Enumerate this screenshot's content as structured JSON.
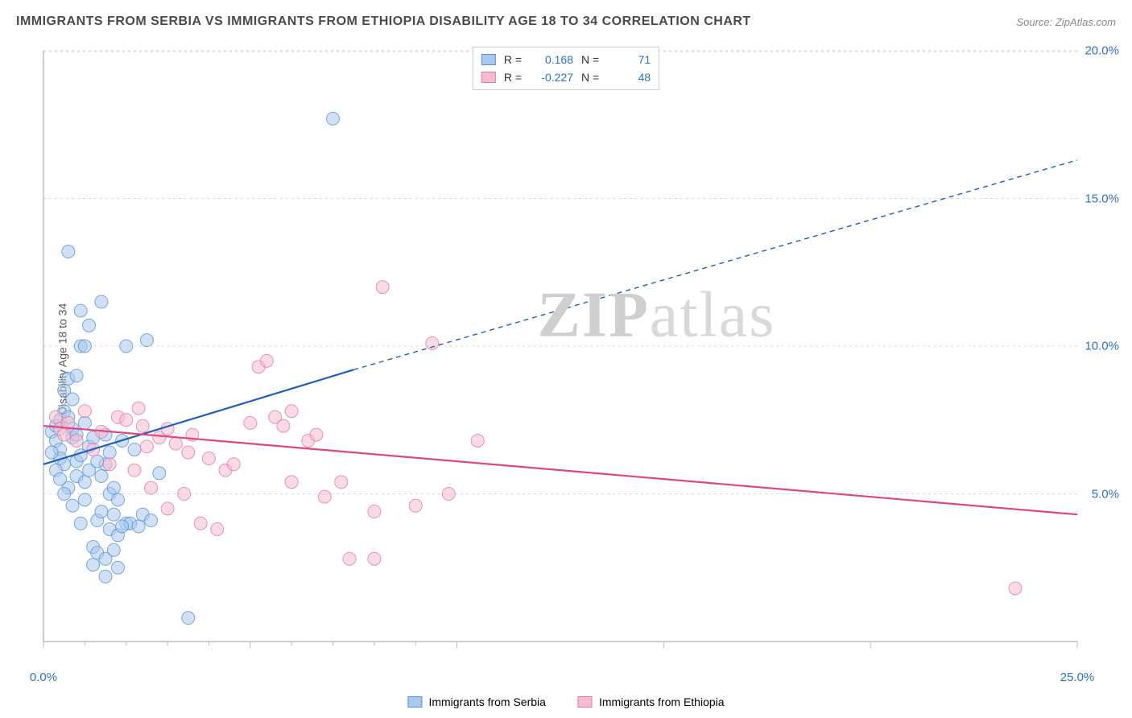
{
  "title": "IMMIGRANTS FROM SERBIA VS IMMIGRANTS FROM ETHIOPIA DISABILITY AGE 18 TO 34 CORRELATION CHART",
  "source": "Source: ZipAtlas.com",
  "ylabel": "Disability Age 18 to 34",
  "watermark_bold": "ZIP",
  "watermark_light": "atlas",
  "chart": {
    "type": "scatter",
    "background_color": "#ffffff",
    "grid_color": "#d8d8d8",
    "axis_color": "#bbbbbb",
    "xlim": [
      0,
      25
    ],
    "ylim": [
      0,
      20
    ],
    "xticks": [
      0,
      5,
      10,
      15,
      20,
      25
    ],
    "yticks": [
      5,
      10,
      15,
      20
    ],
    "xtick_minor": [
      1,
      2,
      3,
      4,
      6,
      7,
      8,
      9
    ],
    "xtick_labels": {
      "0": "0.0%",
      "25": "25.0%"
    },
    "ytick_labels": {
      "5": "5.0%",
      "10": "10.0%",
      "15": "15.0%",
      "20": "20.0%"
    },
    "label_color": "#2a6fd6",
    "label_fontsize": 15,
    "marker_radius": 8,
    "marker_opacity": 0.55,
    "series": [
      {
        "name": "Immigrants from Serbia",
        "label": "Immigrants from Serbia",
        "color_fill": "#a9c8ef",
        "color_stroke": "#5a94d8",
        "trend_color": "#1d5fc2",
        "trend_width": 2.2,
        "R": "0.168",
        "N": "71",
        "trend": {
          "x1": 0,
          "y1": 6.0,
          "x2_solid": 7.5,
          "y2_solid": 9.2,
          "x2": 25,
          "y2": 16.3
        },
        "points": [
          [
            0.2,
            7.1
          ],
          [
            0.3,
            6.8
          ],
          [
            0.3,
            7.3
          ],
          [
            0.4,
            6.5
          ],
          [
            0.4,
            7.5
          ],
          [
            0.4,
            6.2
          ],
          [
            0.5,
            7.8
          ],
          [
            0.5,
            8.5
          ],
          [
            0.5,
            6.0
          ],
          [
            0.6,
            5.2
          ],
          [
            0.6,
            8.9
          ],
          [
            0.6,
            13.2
          ],
          [
            0.7,
            6.9
          ],
          [
            0.7,
            7.2
          ],
          [
            0.7,
            4.6
          ],
          [
            0.8,
            5.6
          ],
          [
            0.8,
            6.1
          ],
          [
            0.8,
            7.0
          ],
          [
            0.9,
            10.0
          ],
          [
            0.9,
            11.2
          ],
          [
            0.9,
            4.0
          ],
          [
            1.0,
            4.8
          ],
          [
            1.0,
            10.0
          ],
          [
            1.0,
            5.4
          ],
          [
            1.1,
            6.6
          ],
          [
            1.1,
            10.7
          ],
          [
            1.2,
            3.2
          ],
          [
            1.2,
            6.9
          ],
          [
            1.2,
            2.6
          ],
          [
            1.3,
            4.1
          ],
          [
            1.3,
            3.0
          ],
          [
            1.4,
            4.4
          ],
          [
            1.4,
            11.5
          ],
          [
            1.5,
            6.0
          ],
          [
            1.5,
            2.2
          ],
          [
            1.5,
            2.8
          ],
          [
            1.6,
            5.0
          ],
          [
            1.6,
            3.8
          ],
          [
            1.7,
            4.3
          ],
          [
            1.7,
            3.1
          ],
          [
            1.8,
            3.6
          ],
          [
            1.8,
            2.5
          ],
          [
            1.9,
            6.8
          ],
          [
            2.0,
            4.0
          ],
          [
            2.0,
            10.0
          ],
          [
            2.1,
            4.0
          ],
          [
            2.3,
            3.9
          ],
          [
            2.4,
            4.3
          ],
          [
            2.5,
            10.2
          ],
          [
            2.6,
            4.1
          ],
          [
            3.5,
            0.8
          ],
          [
            0.3,
            5.8
          ],
          [
            0.4,
            5.5
          ],
          [
            0.5,
            5.0
          ],
          [
            0.6,
            7.6
          ],
          [
            0.7,
            8.2
          ],
          [
            0.8,
            9.0
          ],
          [
            0.9,
            6.3
          ],
          [
            1.0,
            7.4
          ],
          [
            1.1,
            5.8
          ],
          [
            1.3,
            6.1
          ],
          [
            1.4,
            5.6
          ],
          [
            1.5,
            7.0
          ],
          [
            1.6,
            6.4
          ],
          [
            1.7,
            5.2
          ],
          [
            1.8,
            4.8
          ],
          [
            1.9,
            3.9
          ],
          [
            2.2,
            6.5
          ],
          [
            2.8,
            5.7
          ],
          [
            0.2,
            6.4
          ],
          [
            7.0,
            17.7
          ]
        ]
      },
      {
        "name": "Immigrants from Ethiopia",
        "label": "Immigrants from Ethiopia",
        "color_fill": "#f6bcce",
        "color_stroke": "#e77aa0",
        "trend_color": "#e2447e",
        "trend_width": 2.2,
        "R": "-0.227",
        "N": "48",
        "trend": {
          "x1": 0,
          "y1": 7.3,
          "x2_solid": 25,
          "y2_solid": 4.3,
          "x2": 25,
          "y2": 4.3
        },
        "points": [
          [
            0.3,
            7.6
          ],
          [
            0.4,
            7.2
          ],
          [
            0.5,
            7.0
          ],
          [
            0.6,
            7.4
          ],
          [
            0.8,
            6.8
          ],
          [
            1.0,
            7.8
          ],
          [
            1.2,
            6.5
          ],
          [
            1.4,
            7.1
          ],
          [
            1.6,
            6.0
          ],
          [
            1.8,
            7.6
          ],
          [
            2.0,
            7.5
          ],
          [
            2.2,
            5.8
          ],
          [
            2.3,
            7.9
          ],
          [
            2.5,
            6.6
          ],
          [
            2.6,
            5.2
          ],
          [
            2.8,
            6.9
          ],
          [
            3.0,
            4.5
          ],
          [
            3.0,
            7.2
          ],
          [
            3.2,
            6.7
          ],
          [
            3.4,
            5.0
          ],
          [
            3.5,
            6.4
          ],
          [
            3.8,
            4.0
          ],
          [
            4.0,
            6.2
          ],
          [
            4.2,
            3.8
          ],
          [
            4.4,
            5.8
          ],
          [
            4.6,
            6.0
          ],
          [
            5.0,
            7.4
          ],
          [
            5.2,
            9.3
          ],
          [
            5.4,
            9.5
          ],
          [
            5.6,
            7.6
          ],
          [
            5.8,
            7.3
          ],
          [
            6.0,
            7.8
          ],
          [
            6.0,
            5.4
          ],
          [
            6.4,
            6.8
          ],
          [
            6.6,
            7.0
          ],
          [
            6.8,
            4.9
          ],
          [
            7.2,
            5.4
          ],
          [
            7.4,
            2.8
          ],
          [
            8.0,
            4.4
          ],
          [
            8.0,
            2.8
          ],
          [
            8.2,
            12.0
          ],
          [
            9.0,
            4.6
          ],
          [
            9.4,
            10.1
          ],
          [
            9.8,
            5.0
          ],
          [
            10.5,
            6.8
          ],
          [
            23.5,
            1.8
          ],
          [
            2.4,
            7.3
          ],
          [
            3.6,
            7.0
          ]
        ]
      }
    ]
  },
  "bottom_legend": [
    {
      "label": "Immigrants from Serbia",
      "fill": "#a9c8ef",
      "stroke": "#5a94d8"
    },
    {
      "label": "Immigrants from Ethiopia",
      "fill": "#f6bcce",
      "stroke": "#e77aa0"
    }
  ]
}
